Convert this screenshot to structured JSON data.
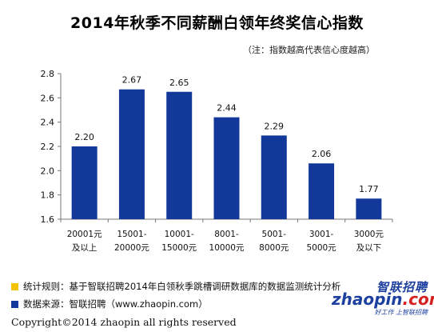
{
  "chart_data": {
    "type": "bar",
    "title": "2014年秋季不同薪酬白领年终奖信心指数",
    "subtitle": "（注：指数越高代表信心度越高）",
    "categories": [
      [
        "20001元",
        "及以上"
      ],
      [
        "15001-",
        "20000元"
      ],
      [
        "10001-",
        "15000元"
      ],
      [
        "8001-",
        "10000元"
      ],
      [
        "5001-",
        "8000元"
      ],
      [
        "3001-",
        "5000元"
      ],
      [
        "3000元",
        "及以下"
      ]
    ],
    "values": [
      2.2,
      2.67,
      2.65,
      2.44,
      2.29,
      2.06,
      1.77
    ],
    "value_labels": [
      "2.20",
      "2.67",
      "2.65",
      "2.44",
      "2.29",
      "2.06",
      "1.77"
    ],
    "ylim": [
      1.6,
      2.8
    ],
    "yticks": [
      "1.6",
      "1.8",
      "2.0",
      "2.2",
      "2.4",
      "2.6",
      "2.8"
    ],
    "bar_color": "#12399a",
    "grid": false,
    "legend": "none"
  },
  "footer": {
    "legend": [
      {
        "color": "#f5c400",
        "text": "统计规则：基于智联招聘2014年白领秋季跳槽调研数据库的数据监测统计分析"
      },
      {
        "color": "#12399a",
        "text": "数据来源：智联招聘（www.zhaopin.com）"
      }
    ],
    "copyright": "Copyright©2014 zhaopin all rights reserved"
  },
  "logo": {
    "cn": "智联招聘",
    "en_main": "zhaopin",
    "en_suffix": ".com",
    "slogan": "好工作 上智联招聘"
  }
}
